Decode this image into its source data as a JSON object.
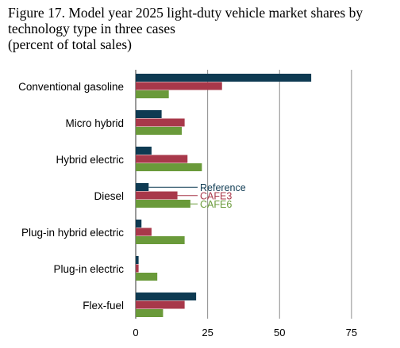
{
  "title_lines": [
    "Figure 17. Model year 2025 light-duty vehicle market shares by",
    "technology type in three cases",
    "(percent of total sales)"
  ],
  "chart_data": {
    "type": "bar",
    "orientation": "horizontal",
    "categories": [
      "Conventional gasoline",
      "Micro hybrid",
      "Hybrid electric",
      "Diesel",
      "Plug-in hybrid electric",
      "Plug-in electric",
      "Flex-fuel"
    ],
    "series": [
      {
        "name": "Reference",
        "color": "#0e3a52",
        "values": [
          61,
          9,
          5.5,
          4.5,
          2,
          1,
          21
        ]
      },
      {
        "name": "CAFE3",
        "color": "#a8384a",
        "values": [
          30,
          17,
          18,
          14.5,
          5.5,
          1,
          17
        ]
      },
      {
        "name": "CAFE6",
        "color": "#6a9a3a",
        "values": [
          11.5,
          16,
          23,
          19,
          17,
          7.5,
          9.5
        ]
      }
    ],
    "xlim": [
      0,
      88
    ],
    "xticks": [
      0,
      25,
      50,
      75
    ],
    "grid": "vertical",
    "legend": "inline labels beside the Diesel bars"
  }
}
